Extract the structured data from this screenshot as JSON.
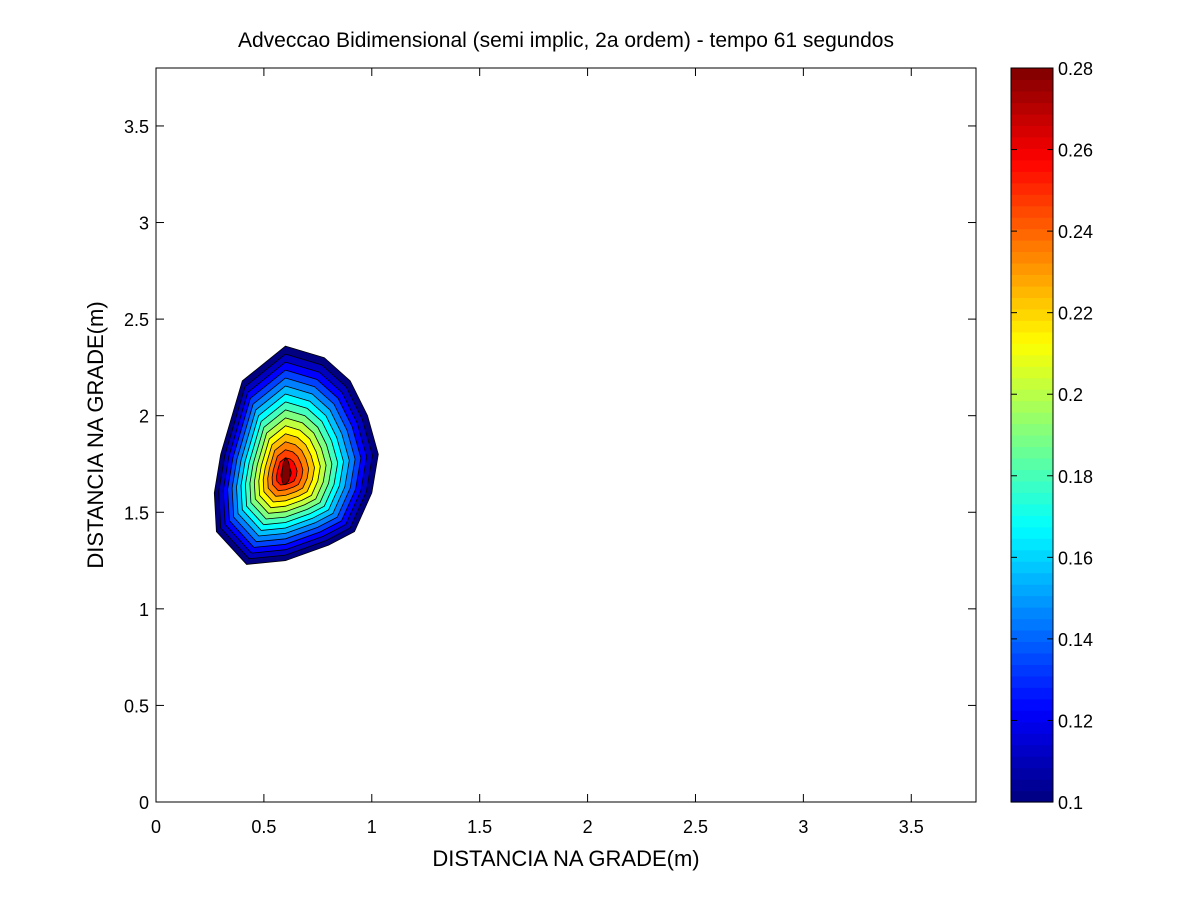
{
  "figure": {
    "title": "Adveccao Bidimensional (semi implic, 2a ordem) - tempo 61 segundos"
  },
  "chart_data": {
    "type": "contour",
    "title": "Adveccao Bidimensional (semi implic, 2a ordem) - tempo 61 segundos",
    "xlabel": "DISTANCIA NA GRADE(m)",
    "ylabel": "DISTANCIA NA GRADE(m)",
    "xlim": [
      0,
      3.8
    ],
    "ylim": [
      0,
      3.8
    ],
    "xticks": [
      0,
      0.5,
      1,
      1.5,
      2,
      2.5,
      3,
      3.5
    ],
    "xtick_labels": [
      "0",
      "0.5",
      "1",
      "1.5",
      "2",
      "2.5",
      "3",
      "3.5"
    ],
    "yticks": [
      0,
      0.5,
      1,
      1.5,
      2,
      2.5,
      3,
      3.5
    ],
    "ytick_labels": [
      "0",
      "0.5",
      "1",
      "1.5",
      "2",
      "2.5",
      "3",
      "3.5"
    ],
    "grid": false,
    "colormap": "jet",
    "field": {
      "peak_value": 0.28,
      "peak_center": [
        0.6,
        1.7
      ],
      "outer_level": 0.1,
      "outer_contour": [
        [
          0.6,
          2.36
        ],
        [
          0.78,
          2.3
        ],
        [
          0.9,
          2.18
        ],
        [
          0.98,
          2.0
        ],
        [
          1.03,
          1.8
        ],
        [
          1.0,
          1.6
        ],
        [
          0.92,
          1.4
        ],
        [
          0.8,
          1.33
        ],
        [
          0.6,
          1.25
        ],
        [
          0.42,
          1.23
        ],
        [
          0.28,
          1.4
        ],
        [
          0.27,
          1.6
        ],
        [
          0.3,
          1.8
        ],
        [
          0.4,
          2.18
        ]
      ]
    },
    "colorbar": {
      "min": 0.1,
      "max": 0.28,
      "ticks": [
        0.1,
        0.12,
        0.14,
        0.16,
        0.18,
        0.2,
        0.22,
        0.24,
        0.26,
        0.28
      ],
      "tick_labels": [
        "0.1",
        "0.12",
        "0.14",
        "0.16",
        "0.18",
        "0.2",
        "0.22",
        "0.24",
        "0.26",
        "0.28"
      ],
      "placement": "right"
    }
  }
}
